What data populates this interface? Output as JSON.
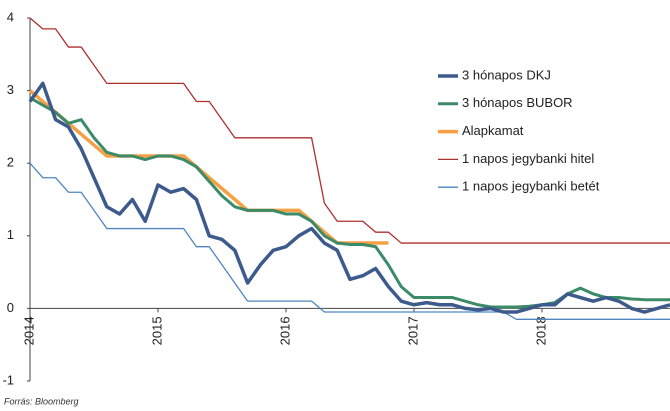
{
  "chart_data": {
    "type": "line",
    "source": "Forrás: Bloomberg",
    "x": [
      2014.0,
      2014.1,
      2014.2,
      2014.3,
      2014.4,
      2014.5,
      2014.6,
      2014.7,
      2014.8,
      2014.9,
      2015.0,
      2015.1,
      2015.2,
      2015.3,
      2015.4,
      2015.5,
      2015.6,
      2015.7,
      2015.8,
      2015.9,
      2016.0,
      2016.1,
      2016.2,
      2016.3,
      2016.4,
      2016.5,
      2016.6,
      2016.7,
      2016.8,
      2016.9,
      2017.0,
      2017.1,
      2017.2,
      2017.3,
      2017.4,
      2017.5,
      2017.6,
      2017.7,
      2017.8,
      2017.9,
      2018.0,
      2018.1,
      2018.2,
      2018.3,
      2018.4,
      2018.5,
      2018.6,
      2018.7,
      2018.8,
      2018.9,
      2019.0
    ],
    "xlim": [
      2014,
      2019
    ],
    "xticks": [
      2014,
      2015,
      2016,
      2017,
      2018
    ],
    "ylim": [
      -1,
      4
    ],
    "yticks": [
      -1,
      0,
      1,
      2,
      3,
      4
    ],
    "series": [
      {
        "name": "3 hónapos DKJ",
        "color": "#3d5a8c",
        "width": 3.5,
        "values": [
          2.85,
          3.1,
          2.6,
          2.5,
          2.2,
          1.8,
          1.4,
          1.3,
          1.5,
          1.2,
          1.7,
          1.6,
          1.65,
          1.5,
          1.0,
          0.95,
          0.8,
          0.35,
          0.6,
          0.8,
          0.85,
          1.0,
          1.1,
          0.9,
          0.8,
          0.4,
          0.45,
          0.55,
          0.3,
          0.1,
          0.05,
          0.08,
          0.05,
          0.05,
          0.0,
          -0.02,
          0.0,
          -0.05,
          -0.05,
          0.0,
          0.05,
          0.05,
          0.2,
          0.15,
          0.1,
          0.15,
          0.1,
          0.0,
          -0.05,
          0.0,
          0.05
        ]
      },
      {
        "name": "3 hónapos BUBOR",
        "color": "#3b8a68",
        "width": 3,
        "values": [
          2.9,
          2.8,
          2.7,
          2.55,
          2.6,
          2.35,
          2.15,
          2.1,
          2.1,
          2.05,
          2.1,
          2.1,
          2.05,
          1.95,
          1.75,
          1.55,
          1.4,
          1.35,
          1.35,
          1.35,
          1.3,
          1.3,
          1.2,
          1.0,
          0.9,
          0.88,
          0.88,
          0.85,
          0.6,
          0.3,
          0.15,
          0.15,
          0.15,
          0.15,
          0.1,
          0.05,
          0.02,
          0.02,
          0.02,
          0.03,
          0.05,
          0.08,
          0.2,
          0.28,
          0.2,
          0.15,
          0.15,
          0.13,
          0.12,
          0.12,
          0.12
        ]
      },
      {
        "name": "Alapkamat",
        "color": "#f5a043",
        "width": 3.5,
        "values": [
          3.0,
          2.85,
          2.7,
          2.55,
          2.4,
          2.25,
          2.1,
          2.1,
          2.1,
          2.1,
          2.1,
          2.1,
          2.1,
          1.95,
          1.8,
          1.65,
          1.5,
          1.35,
          1.35,
          1.35,
          1.35,
          1.35,
          1.2,
          1.05,
          0.9,
          0.9,
          0.9,
          0.9,
          0.9,
          null,
          null,
          null,
          null,
          null,
          null,
          null,
          null,
          null,
          null,
          null,
          null,
          null,
          null,
          null,
          null,
          null,
          null,
          null,
          null,
          null,
          null
        ]
      },
      {
        "name": "1 napos jegybanki hitel",
        "color": "#b02f2f",
        "width": 1.3,
        "values": [
          4.0,
          3.85,
          3.85,
          3.6,
          3.6,
          3.35,
          3.1,
          3.1,
          3.1,
          3.1,
          3.1,
          3.1,
          3.1,
          2.85,
          2.85,
          2.6,
          2.35,
          2.35,
          2.35,
          2.35,
          2.35,
          2.35,
          2.35,
          1.45,
          1.2,
          1.2,
          1.2,
          1.05,
          1.05,
          0.9,
          0.9,
          0.9,
          0.9,
          0.9,
          0.9,
          0.9,
          0.9,
          0.9,
          0.9,
          0.9,
          0.9,
          0.9,
          0.9,
          0.9,
          0.9,
          0.9,
          0.9,
          0.9,
          0.9,
          0.9,
          0.9
        ]
      },
      {
        "name": "1 napos jegybanki betét",
        "color": "#4f86c0",
        "width": 1.3,
        "values": [
          2.0,
          1.8,
          1.8,
          1.6,
          1.6,
          1.35,
          1.1,
          1.1,
          1.1,
          1.1,
          1.1,
          1.1,
          1.1,
          0.85,
          0.85,
          0.6,
          0.35,
          0.1,
          0.1,
          0.1,
          0.1,
          0.1,
          0.1,
          -0.05,
          -0.05,
          -0.05,
          -0.05,
          -0.05,
          -0.05,
          -0.05,
          -0.05,
          -0.05,
          -0.05,
          -0.05,
          -0.05,
          -0.05,
          -0.05,
          -0.05,
          -0.15,
          -0.15,
          -0.15,
          -0.15,
          -0.15,
          -0.15,
          -0.15,
          -0.15,
          -0.15,
          -0.15,
          -0.15,
          -0.15,
          -0.15
        ]
      }
    ]
  }
}
